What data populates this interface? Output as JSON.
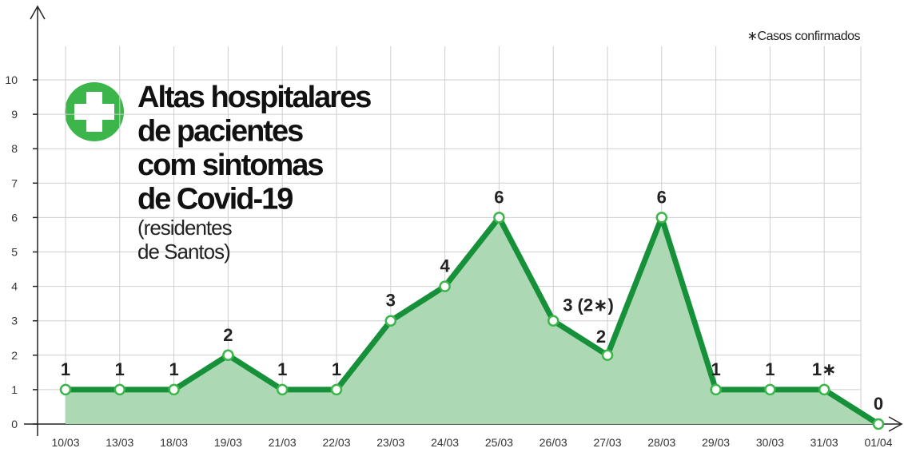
{
  "chart_data": {
    "type": "area-line",
    "title": [
      "Altas hospitalares",
      "de pacientes",
      "com sintomas",
      "de Covid-19"
    ],
    "subtitle": [
      "(residentes",
      "de Santos)"
    ],
    "note": "∗Casos confirmados",
    "categories": [
      "10/03",
      "13/03",
      "18/03",
      "19/03",
      "21/03",
      "22/03",
      "23/03",
      "24/03",
      "25/03",
      "26/03",
      "27/03",
      "28/03",
      "29/03",
      "30/03",
      "31/03",
      "01/04"
    ],
    "series": [
      {
        "name": "Altas hospitalares",
        "color": "#16913a",
        "values": [
          1,
          1,
          1,
          2,
          1,
          1,
          3,
          4,
          6,
          3,
          2,
          6,
          1,
          1,
          1,
          0
        ]
      }
    ],
    "value_labels": [
      "1",
      "1",
      "1",
      "2",
      "1",
      "1",
      "3",
      "4",
      "6",
      "3 (2∗)",
      "2",
      "6",
      "1",
      "1",
      "1∗",
      "0"
    ],
    "area_color": "#acd9b4",
    "ylim": [
      0,
      10
    ],
    "yticks": [
      0,
      1,
      2,
      3,
      4,
      5,
      6,
      7,
      8,
      9,
      10
    ],
    "grid": true
  }
}
